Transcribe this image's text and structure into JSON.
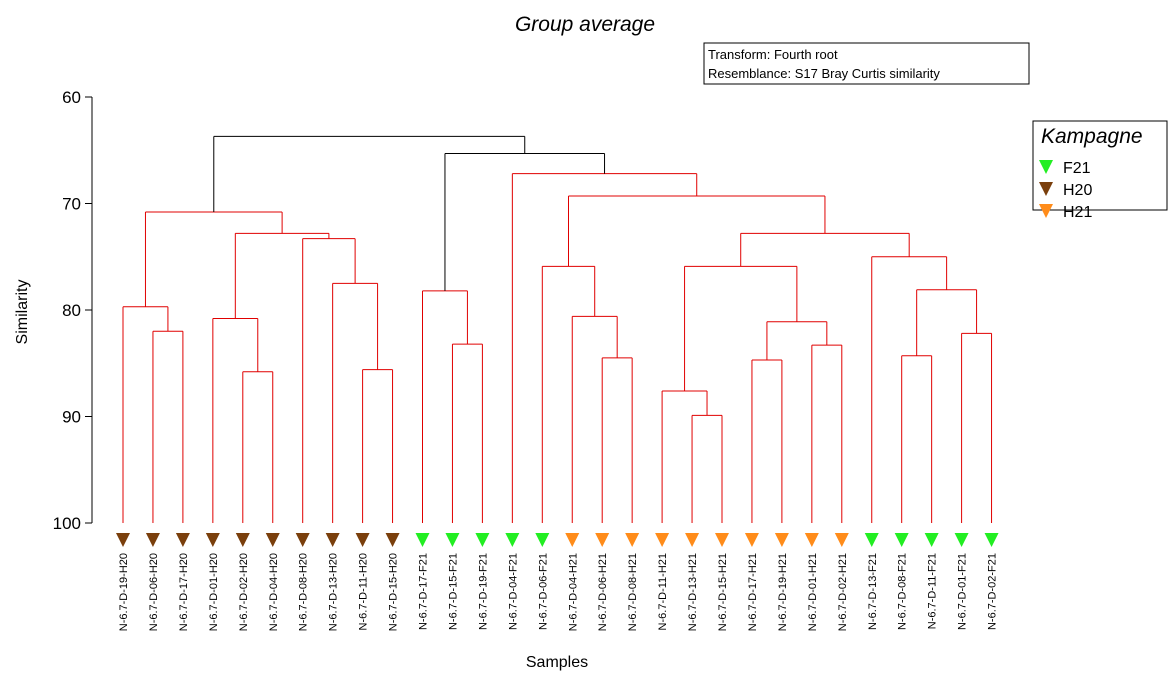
{
  "chart_data": {
    "type": "dendrogram",
    "title": "Group average",
    "xlabel": "Samples",
    "ylabel": "Similarity",
    "ylim": [
      60,
      100
    ],
    "yticks": [
      60,
      70,
      80,
      90,
      100
    ],
    "info_box": [
      "Transform: Fourth root",
      "Resemblance: S17 Bray Curtis similarity"
    ],
    "legend": {
      "title": "Kampagne",
      "placement": "right",
      "entries": [
        {
          "label": "F21",
          "color": "#22ee22"
        },
        {
          "label": "H20",
          "color": "#7a3f0c"
        },
        {
          "label": "H21",
          "color": "#ff8c1a"
        }
      ]
    },
    "colors": {
      "significant": "#e00000",
      "nonsignificant": "#000000"
    },
    "leaves": [
      {
        "label": "N-6.7-D-19-H20",
        "group": "H20"
      },
      {
        "label": "N-6.7-D-06-H20",
        "group": "H20"
      },
      {
        "label": "N-6.7-D-17-H20",
        "group": "H20"
      },
      {
        "label": "N-6.7-D-01-H20",
        "group": "H20"
      },
      {
        "label": "N-6.7-D-02-H20",
        "group": "H20"
      },
      {
        "label": "N-6.7-D-04-H20",
        "group": "H20"
      },
      {
        "label": "N-6.7-D-08-H20",
        "group": "H20"
      },
      {
        "label": "N-6.7-D-13-H20",
        "group": "H20"
      },
      {
        "label": "N-6.7-D-11-H20",
        "group": "H20"
      },
      {
        "label": "N-6.7-D-15-H20",
        "group": "H20"
      },
      {
        "label": "N-6.7-D-17-F21",
        "group": "F21"
      },
      {
        "label": "N-6.7-D-15-F21",
        "group": "F21"
      },
      {
        "label": "N-6.7-D-19-F21",
        "group": "F21"
      },
      {
        "label": "N-6.7-D-04-F21",
        "group": "F21"
      },
      {
        "label": "N-6.7-D-06-F21",
        "group": "F21"
      },
      {
        "label": "N-6.7-D-04-H21",
        "group": "H21"
      },
      {
        "label": "N-6.7-D-06-H21",
        "group": "H21"
      },
      {
        "label": "N-6.7-D-08-H21",
        "group": "H21"
      },
      {
        "label": "N-6.7-D-11-H21",
        "group": "H21"
      },
      {
        "label": "N-6.7-D-13-H21",
        "group": "H21"
      },
      {
        "label": "N-6.7-D-15-H21",
        "group": "H21"
      },
      {
        "label": "N-6.7-D-17-H21",
        "group": "H21"
      },
      {
        "label": "N-6.7-D-19-H21",
        "group": "H21"
      },
      {
        "label": "N-6.7-D-01-H21",
        "group": "H21"
      },
      {
        "label": "N-6.7-D-02-H21",
        "group": "H21"
      },
      {
        "label": "N-6.7-D-13-F21",
        "group": "F21"
      },
      {
        "label": "N-6.7-D-08-F21",
        "group": "F21"
      },
      {
        "label": "N-6.7-D-11-F21",
        "group": "F21"
      },
      {
        "label": "N-6.7-D-01-F21",
        "group": "F21"
      },
      {
        "label": "N-6.7-D-02-F21",
        "group": "F21"
      }
    ],
    "merges": [
      {
        "a": 1,
        "b": 2,
        "sim": 82.0,
        "sig": true
      },
      {
        "a": 0,
        "b": 30,
        "sim": 79.7,
        "sig": true
      },
      {
        "a": 4,
        "b": 5,
        "sim": 85.8,
        "sig": true
      },
      {
        "a": 3,
        "b": 32,
        "sim": 80.8,
        "sig": true
      },
      {
        "a": 8,
        "b": 9,
        "sim": 85.6,
        "sig": true
      },
      {
        "a": 7,
        "b": 34,
        "sim": 77.5,
        "sig": true
      },
      {
        "a": 6,
        "b": 35,
        "sim": 73.3,
        "sig": true
      },
      {
        "a": 33,
        "b": 36,
        "sim": 72.8,
        "sig": true
      },
      {
        "a": 31,
        "b": 37,
        "sim": 70.8,
        "sig": true
      },
      {
        "a": 11,
        "b": 12,
        "sim": 83.2,
        "sig": true
      },
      {
        "a": 10,
        "b": 39,
        "sim": 78.2,
        "sig": true
      },
      {
        "a": 16,
        "b": 17,
        "sim": 84.5,
        "sig": true
      },
      {
        "a": 15,
        "b": 41,
        "sim": 80.6,
        "sig": true
      },
      {
        "a": 14,
        "b": 42,
        "sim": 75.9,
        "sig": true
      },
      {
        "a": 19,
        "b": 20,
        "sim": 89.9,
        "sig": true
      },
      {
        "a": 18,
        "b": 44,
        "sim": 87.6,
        "sig": true
      },
      {
        "a": 21,
        "b": 22,
        "sim": 84.7,
        "sig": true
      },
      {
        "a": 23,
        "b": 24,
        "sim": 83.3,
        "sig": true
      },
      {
        "a": 46,
        "b": 47,
        "sim": 81.1,
        "sig": true
      },
      {
        "a": 45,
        "b": 48,
        "sim": 75.9,
        "sig": true
      },
      {
        "a": 26,
        "b": 27,
        "sim": 84.3,
        "sig": true
      },
      {
        "a": 28,
        "b": 29,
        "sim": 82.2,
        "sig": true
      },
      {
        "a": 50,
        "b": 51,
        "sim": 78.1,
        "sig": true
      },
      {
        "a": 25,
        "b": 52,
        "sim": 75.0,
        "sig": true
      },
      {
        "a": 49,
        "b": 53,
        "sim": 72.8,
        "sig": true
      },
      {
        "a": 43,
        "b": 54,
        "sim": 69.3,
        "sig": true
      },
      {
        "a": 13,
        "b": 55,
        "sim": 67.2,
        "sig": true
      },
      {
        "a": 40,
        "b": 56,
        "sim": 65.3,
        "sig": false
      },
      {
        "a": 38,
        "b": 57,
        "sim": 63.7,
        "sig": false
      }
    ]
  }
}
